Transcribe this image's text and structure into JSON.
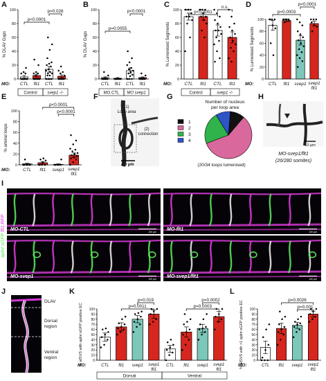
{
  "panels": {
    "A": {
      "letter": "A",
      "ylabel": "% DLAV Gaps",
      "yticks": [
        "0",
        "20",
        "40",
        "60",
        "80",
        "100"
      ],
      "mo_label": "MO:",
      "bars": [
        "CTL",
        "flt1",
        "CTL",
        "flt1"
      ],
      "groups": [
        "Control",
        "svep1 -/-"
      ],
      "pvalues": [
        "p<0.0001",
        "p=0.026"
      ]
    },
    "B": {
      "letter": "B",
      "ylabel": "% DLAV Gaps",
      "yticks": [
        "0",
        "20",
        "40",
        "60",
        "80",
        "100"
      ],
      "bars": [
        "CTL",
        "flt1",
        "CTL",
        "flt1"
      ],
      "groups": [
        "MO CTL",
        "MO svep1"
      ],
      "pvalues": [
        "p=0.0055",
        "p<0.0001"
      ]
    },
    "C": {
      "letter": "C",
      "ylabel": "% Lumenised Segments",
      "yticks": [
        "0",
        "20",
        "40",
        "60",
        "80",
        "100"
      ],
      "mo_label": "MO:",
      "bars": [
        "CTL",
        "flt1",
        "CTL",
        "flt1"
      ],
      "groups": [
        "Control",
        "svep1 -/-"
      ],
      "pvalues": [
        "p<0.0001",
        "n.s."
      ]
    },
    "D": {
      "letter": "D",
      "ylabel": "% Lumenised Segments",
      "yticks": [
        "0",
        "20",
        "40",
        "60",
        "80",
        "100"
      ],
      "mo_label": "MO:",
      "bars": [
        "CTL",
        "flt1",
        "svep1",
        "svep1 flt1"
      ],
      "pvalues": [
        "p=0.0003",
        "p<0.0001"
      ]
    },
    "E": {
      "letter": "E",
      "ylabel": "% arterial loops",
      "yticks": [
        "0",
        "20",
        "40",
        "60",
        "80",
        "100"
      ],
      "mo_label": "MO:",
      "bars": [
        "CTL",
        "flt1",
        "svep1",
        "svep1 flt1"
      ],
      "pvalues": [
        "p<0.0001",
        "p<0.0001"
      ]
    },
    "F": {
      "letter": "F",
      "annot1": "(1) Loop area",
      "annot2": "(2) connection",
      "scalebar": "10 µm"
    },
    "G": {
      "letter": "G",
      "title": "Number of nucleus per loop area",
      "legend": [
        "1",
        "2",
        "3",
        "4"
      ],
      "caption": "(20/34 loops lumenised)"
    },
    "H": {
      "letter": "H",
      "scalebar": "10 µm",
      "caption1": "MO-svep1/flt1",
      "caption2": "(26/280 somites)"
    },
    "I": {
      "letter": "I",
      "vertical_label_green": "aplnr:sGFP",
      "vertical_label_magenta": "flt1:RFP",
      "images": [
        "MO-CTL",
        "MO-flt1",
        "MO-svep1",
        "MO-svep1/flt1"
      ],
      "scalebar": "100 µm"
    },
    "J": {
      "letter": "J",
      "regions": [
        "DLAV",
        "Dorsal region",
        "Ventral region"
      ]
    },
    "K": {
      "letter": "K",
      "ylabel": "% aISVS with aplnr:sGFP positive EC",
      "yticks": [
        "0",
        "10",
        "20",
        "30",
        "40",
        "50",
        "60",
        "70",
        "80",
        "90",
        "100"
      ],
      "mo_label": "MO:",
      "bars": [
        "CTL",
        "flt1",
        "svep1",
        "svep1 flt1",
        "CTL",
        "flt1",
        "svep1",
        "svep1 flt1"
      ],
      "groups": [
        "Dorsal",
        "Ventral"
      ],
      "pvalues": [
        "p=0.019",
        "p=0.0011",
        "p=0.0002",
        "p=0.0003"
      ]
    },
    "L": {
      "letter": "L",
      "ylabel": "% aISVS with >1 aplnr:sGFP positive EC",
      "yticks": [
        "0",
        "10",
        "20",
        "30",
        "40",
        "50",
        "60",
        "70",
        "80",
        "90",
        "100"
      ],
      "mo_label": "MO:",
      "bars": [
        "CTL",
        "flt1",
        "svep1",
        "svep1 flt1"
      ],
      "pvalues": [
        "p=0.0026",
        "p=0.001"
      ]
    }
  },
  "colors": {
    "control": "#ffffff",
    "flt1": "#d7261e",
    "svep1": "#7cc7b9",
    "svep1_flt1": "#d7261e",
    "pie": [
      "#111111",
      "#d9689d",
      "#2fb34a",
      "#2d55c8"
    ],
    "green": "#58e05a",
    "magenta": "#d63bd6"
  },
  "chart_data": [
    {
      "panel": "A",
      "type": "bar",
      "categories": [
        "CTL",
        "flt1",
        "CTL",
        "flt1"
      ],
      "values": [
        3,
        5,
        14,
        4
      ],
      "errors": [
        2,
        2,
        4,
        2
      ],
      "points": [
        [
          0,
          0,
          0,
          0,
          0,
          0,
          0,
          0,
          0,
          0,
          8,
          8,
          10,
          16
        ],
        [
          0,
          0,
          0,
          0,
          0,
          0,
          0,
          0,
          0,
          5,
          8,
          8,
          10,
          20,
          28
        ],
        [
          0,
          0,
          0,
          0,
          0,
          0,
          5,
          5,
          8,
          8,
          10,
          12,
          14,
          18,
          20,
          22,
          24,
          30,
          42,
          50,
          60
        ],
        [
          0,
          0,
          0,
          0,
          0,
          0,
          0,
          0,
          5,
          8,
          10,
          12,
          18
        ]
      ],
      "ylim": [
        0,
        100
      ]
    },
    {
      "panel": "B",
      "type": "bar",
      "categories": [
        "CTL",
        "flt1",
        "CTL",
        "flt1"
      ],
      "values": [
        2,
        1,
        12,
        2
      ],
      "errors": [
        1,
        1,
        4,
        1
      ],
      "points": [
        [
          0,
          0,
          0,
          0,
          0,
          0,
          0,
          0,
          5,
          10
        ],
        [
          0,
          0,
          0,
          0,
          0,
          0,
          0,
          0,
          0
        ],
        [
          0,
          0,
          0,
          0,
          4,
          6,
          8,
          10,
          12,
          14,
          16,
          20,
          24,
          30,
          40
        ],
        [
          0,
          0,
          0,
          0,
          0,
          0,
          0,
          0,
          5,
          8
        ]
      ],
      "ylim": [
        0,
        100
      ]
    },
    {
      "panel": "C",
      "type": "bar",
      "categories": [
        "CTL",
        "flt1",
        "CTL",
        "flt1"
      ],
      "values": [
        90,
        90,
        70,
        60
      ],
      "errors": [
        5,
        5,
        8,
        8
      ],
      "points": [
        [
          100,
          100,
          100,
          100,
          100,
          95,
          90,
          90,
          85,
          80,
          60,
          40
        ],
        [
          100,
          100,
          100,
          100,
          95,
          90,
          90,
          85,
          80,
          70,
          60
        ],
        [
          100,
          95,
          90,
          85,
          80,
          75,
          70,
          70,
          65,
          60,
          55,
          50,
          40,
          30,
          25
        ],
        [
          100,
          90,
          80,
          75,
          70,
          65,
          60,
          55,
          50,
          45,
          40,
          30,
          25
        ]
      ],
      "ylim": [
        0,
        100
      ]
    },
    {
      "panel": "D",
      "type": "bar",
      "categories": [
        "CTL",
        "flt1",
        "svep1",
        "svep1 flt1"
      ],
      "values": [
        90,
        98,
        65,
        93
      ],
      "errors": [
        8,
        2,
        8,
        4
      ],
      "points": [
        [
          100,
          100,
          100,
          100,
          90,
          85,
          60,
          40
        ],
        [
          100,
          100,
          100,
          100,
          100,
          98,
          95
        ],
        [
          100,
          95,
          90,
          80,
          75,
          70,
          65,
          60,
          55,
          50,
          45,
          40,
          35,
          30,
          20
        ],
        [
          100,
          100,
          100,
          95,
          90,
          88,
          80
        ]
      ],
      "ylim": [
        0,
        100
      ]
    },
    {
      "panel": "E",
      "type": "bar",
      "categories": [
        "CTL",
        "flt1",
        "svep1",
        "svep1 flt1"
      ],
      "values": [
        2,
        4,
        1,
        18
      ],
      "errors": [
        1,
        2,
        1,
        4
      ],
      "points": [
        [
          0,
          0,
          0,
          0,
          0,
          0,
          10
        ],
        [
          0,
          0,
          0,
          0,
          5,
          8,
          10,
          12
        ],
        [
          0,
          0,
          0,
          0,
          0,
          10
        ],
        [
          0,
          5,
          10,
          12,
          14,
          16,
          18,
          20,
          22,
          25,
          28,
          30,
          38,
          45,
          55
        ]
      ],
      "ylim": [
        0,
        100
      ]
    },
    {
      "panel": "G",
      "type": "pie",
      "categories": [
        "1",
        "2",
        "3",
        "4"
      ],
      "values": [
        10,
        58,
        22,
        10
      ]
    },
    {
      "panel": "K",
      "type": "bar",
      "categories": [
        "CTL",
        "flt1",
        "svep1",
        "svep1 flt1",
        "CTL",
        "flt1",
        "svep1",
        "svep1 flt1"
      ],
      "values": [
        45,
        65,
        80,
        90,
        22,
        55,
        62,
        85
      ],
      "errors": [
        8,
        8,
        7,
        8,
        7,
        10,
        8,
        10
      ],
      "points": [
        [
          25,
          30,
          40,
          45,
          50,
          55,
          60,
          62
        ],
        [
          50,
          55,
          60,
          62,
          65,
          70,
          72,
          80,
          85
        ],
        [
          55,
          65,
          70,
          75,
          80,
          85,
          90,
          92,
          95
        ],
        [
          70,
          75,
          80,
          90,
          95,
          100,
          100
        ],
        [
          0,
          10,
          15,
          20,
          25,
          30,
          35,
          40
        ],
        [
          20,
          30,
          40,
          50,
          55,
          60,
          70,
          75,
          80,
          90
        ],
        [
          40,
          50,
          55,
          60,
          62,
          65,
          70,
          80,
          90
        ],
        [
          60,
          75,
          80,
          85,
          90,
          100,
          100
        ]
      ],
      "ylim": [
        0,
        100
      ]
    },
    {
      "panel": "L",
      "type": "bar",
      "categories": [
        "CTL",
        "flt1",
        "svep1",
        "svep1 flt1"
      ],
      "values": [
        25,
        62,
        68,
        90
      ],
      "errors": [
        12,
        10,
        6,
        6
      ],
      "points": [
        [
          0,
          0,
          0,
          5,
          20,
          30,
          45,
          60,
          70
        ],
        [
          30,
          40,
          50,
          55,
          60,
          65,
          70,
          80,
          85,
          95
        ],
        [
          45,
          55,
          60,
          65,
          70,
          72,
          75,
          80,
          85
        ],
        [
          75,
          80,
          85,
          90,
          95,
          100,
          100
        ]
      ],
      "ylim": [
        0,
        100
      ]
    }
  ]
}
